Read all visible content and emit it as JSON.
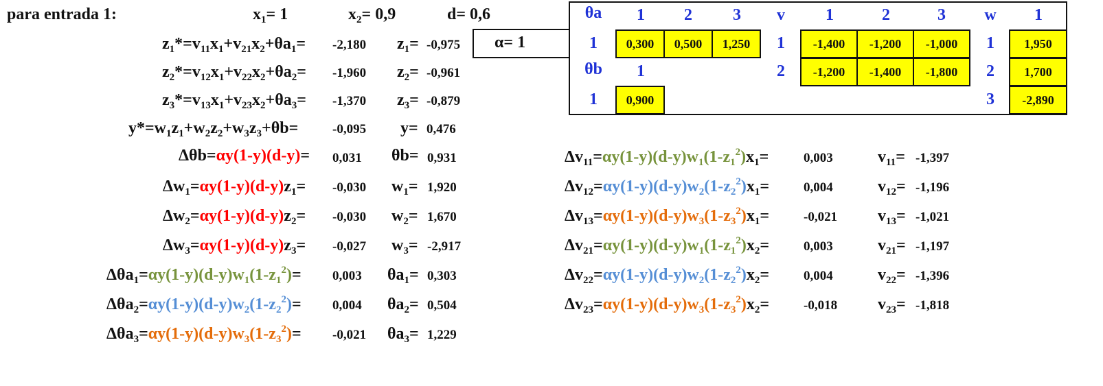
{
  "header": {
    "title": "para entrada 1:",
    "x1_value": "1",
    "x2_value": "0,9",
    "d_label": "d=",
    "d_value": "0,6",
    "alpha_value": "1"
  },
  "forward": {
    "z1_star": "-2,180",
    "z1": "-0,975",
    "z2_star": "-1,960",
    "z2": "-0,961",
    "z3_star": "-1,370",
    "z3": "-0,879",
    "y_star": "-0,095",
    "y": "0,476"
  },
  "updates_left": {
    "d_theta_b": "0,031",
    "theta_b": "0,931",
    "d_w1": "-0,030",
    "w1": "1,920",
    "d_w2": "-0,030",
    "w2": "1,670",
    "d_w3": "-0,027",
    "w3": "-2,917",
    "d_theta_a1": "0,003",
    "theta_a1": "0,303",
    "d_theta_a2": "0,004",
    "theta_a2": "0,504",
    "d_theta_a3": "-0,021",
    "theta_a3": "1,229"
  },
  "updates_right": {
    "d_v11": "0,003",
    "v11": "-1,397",
    "d_v12": "0,004",
    "v12": "-1,196",
    "d_v13": "-0,021",
    "v13": "-1,021",
    "d_v21": "0,003",
    "v21": "-1,197",
    "d_v22": "0,004",
    "v22": "-1,396",
    "d_v23": "-0,018",
    "v23": "-1,818"
  },
  "weights_table": {
    "theta_a_label": "θa",
    "theta_b_label": "θb",
    "v_label": "v",
    "w_label": "w",
    "idx1": "1",
    "idx2": "2",
    "idx3": "3",
    "theta_a_values": [
      "0,300",
      "0,500",
      "1,250"
    ],
    "theta_b_value": "0,900",
    "v_row1": [
      "-1,400",
      "-1,200",
      "-1,000"
    ],
    "v_row2": [
      "-1,200",
      "-1,400",
      "-1,800"
    ],
    "w_values": [
      "1,950",
      "1,700",
      "-2,890"
    ]
  },
  "colors": {
    "red": "#ff0000",
    "green": "#77933c",
    "blue": "#558ed5",
    "orange": "#e46c0a",
    "header_blue": "#1f32d6",
    "highlight": "#ffff00"
  }
}
